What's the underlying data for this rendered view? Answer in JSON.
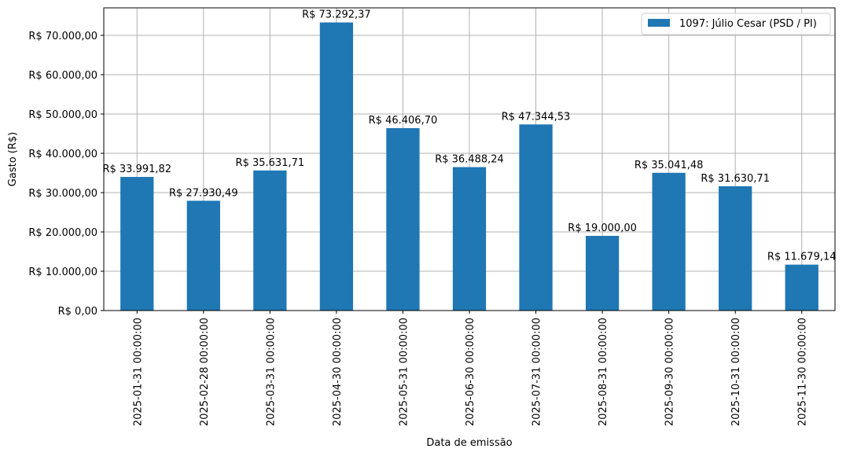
{
  "chart_data": {
    "type": "bar",
    "xlabel": "Data de emissão",
    "ylabel": "Gasto (R$)",
    "ylim": [
      0,
      77000
    ],
    "yticks": [
      {
        "value": 0,
        "label": "R$ 0,00"
      },
      {
        "value": 10000,
        "label": "R$ 10.000,00"
      },
      {
        "value": 20000,
        "label": "R$ 20.000,00"
      },
      {
        "value": 30000,
        "label": "R$ 30.000,00"
      },
      {
        "value": 40000,
        "label": "R$ 40.000,00"
      },
      {
        "value": 50000,
        "label": "R$ 50.000,00"
      },
      {
        "value": 60000,
        "label": "R$ 60.000,00"
      },
      {
        "value": 70000,
        "label": "R$ 70.000,00"
      }
    ],
    "categories": [
      "2025-01-31 00:00:00",
      "2025-02-28 00:00:00",
      "2025-03-31 00:00:00",
      "2025-04-30 00:00:00",
      "2025-05-31 00:00:00",
      "2025-06-30 00:00:00",
      "2025-07-31 00:00:00",
      "2025-08-31 00:00:00",
      "2025-09-30 00:00:00",
      "2025-10-31 00:00:00",
      "2025-11-30 00:00:00"
    ],
    "series": [
      {
        "name": "1097: Júlio Cesar (PSD / PI)",
        "color": "#1f77b4",
        "values": [
          33991.82,
          27930.49,
          35631.71,
          73292.37,
          46406.7,
          36488.24,
          47344.53,
          19000.0,
          35041.48,
          31630.71,
          11679.14
        ],
        "labels": [
          "R$ 33.991,82",
          "R$ 27.930,49",
          "R$ 35.631,71",
          "R$ 73.292,37",
          "R$ 46.406,70",
          "R$ 36.488,24",
          "R$ 47.344,53",
          "R$ 19.000,00",
          "R$ 35.041,48",
          "R$ 31.630,71",
          "R$ 11.679,14"
        ]
      }
    ],
    "grid": true,
    "legend_position": "top-right"
  }
}
